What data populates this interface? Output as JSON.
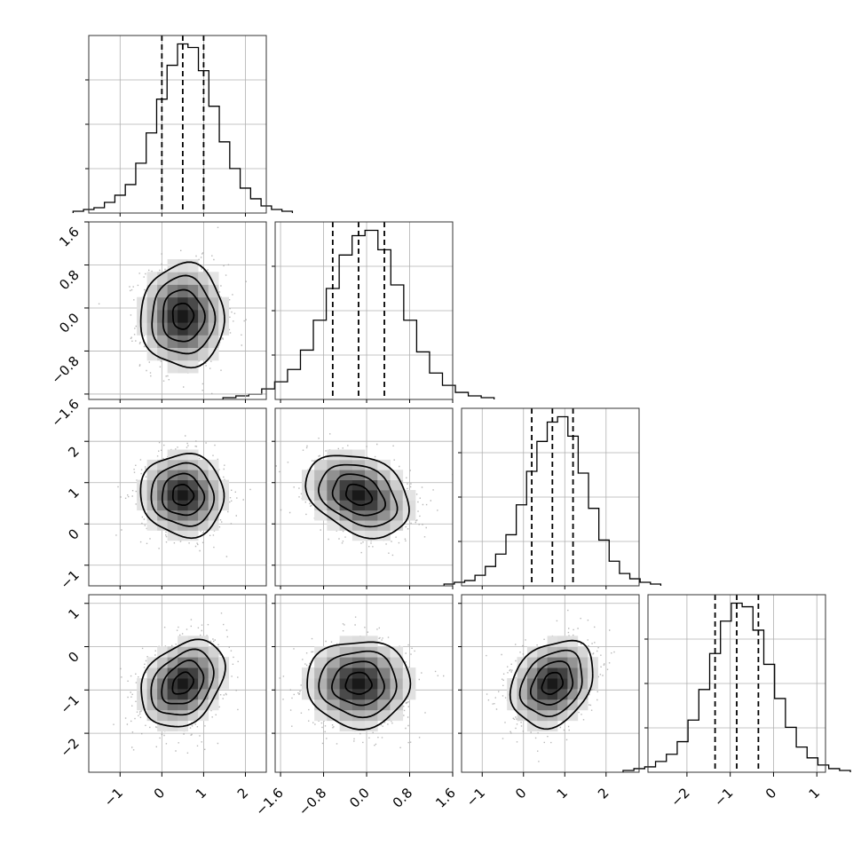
{
  "chart_data": {
    "type": "corner",
    "title": "",
    "n_params": 4,
    "parameters": [
      {
        "index": 0,
        "median": 0.5,
        "sigma": 0.5,
        "quantiles": [
          0.0,
          0.5,
          1.0
        ],
        "range": [
          -1.75,
          2.5
        ],
        "ticks": [
          -1,
          0,
          1,
          2
        ],
        "tick_labels": [
          "−1",
          "0",
          "1",
          "2"
        ],
        "hist_counts": [
          1,
          2,
          3,
          6,
          10,
          16,
          28,
          45,
          64,
          83,
          95,
          93,
          80,
          60,
          40,
          25,
          14,
          8,
          4,
          2,
          1
        ]
      },
      {
        "index": 1,
        "median": -0.15,
        "sigma": 0.48,
        "quantiles": [
          -0.63,
          -0.15,
          0.33
        ],
        "range": [
          -1.7,
          1.6
        ],
        "ticks": [
          -1.6,
          -0.8,
          0.0,
          0.8,
          1.6
        ],
        "tick_labels": [
          "−1.6",
          "−0.8",
          "0.0",
          "0.8",
          "1.6"
        ],
        "hist_counts": [
          1,
          2,
          3,
          6,
          10,
          17,
          28,
          45,
          63,
          82,
          93,
          96,
          85,
          65,
          45,
          27,
          15,
          8,
          4,
          2,
          1
        ]
      },
      {
        "index": 2,
        "median": 0.7,
        "sigma": 0.5,
        "quantiles": [
          0.2,
          0.7,
          1.2
        ],
        "range": [
          -1.5,
          2.8
        ],
        "ticks": [
          -1,
          0,
          1,
          2
        ],
        "tick_labels": [
          "−1",
          "0",
          "1",
          "2"
        ],
        "hist_counts": [
          1,
          2,
          3,
          6,
          11,
          18,
          29,
          46,
          65,
          82,
          93,
          96,
          85,
          64,
          44,
          26,
          14,
          7,
          4,
          2,
          1
        ]
      },
      {
        "index": 3,
        "median": -0.85,
        "sigma": 0.5,
        "quantiles": [
          -1.35,
          -0.85,
          -0.35
        ],
        "range": [
          -2.9,
          1.2
        ],
        "ticks": [
          -2,
          -1,
          0,
          1
        ],
        "tick_labels": [
          "−2",
          "−1",
          "0",
          "1"
        ],
        "hist_counts": [
          1,
          2,
          3,
          6,
          10,
          17,
          29,
          46,
          66,
          84,
          94,
          92,
          79,
          60,
          41,
          25,
          14,
          8,
          4,
          2,
          1
        ]
      }
    ],
    "correlations": [
      {
        "row": 1,
        "col": 0,
        "rho": 0.0
      },
      {
        "row": 2,
        "col": 0,
        "rho": -0.05
      },
      {
        "row": 2,
        "col": 1,
        "rho": -0.3
      },
      {
        "row": 3,
        "col": 0,
        "rho": 0.3
      },
      {
        "row": 3,
        "col": 1,
        "rho": 0.0
      },
      {
        "row": 3,
        "col": 2,
        "rho": 0.25
      }
    ],
    "contour_levels_sigma": [
      0.5,
      1.0,
      1.5,
      2.0
    ],
    "grid": true,
    "quantile_style": "dashed"
  }
}
